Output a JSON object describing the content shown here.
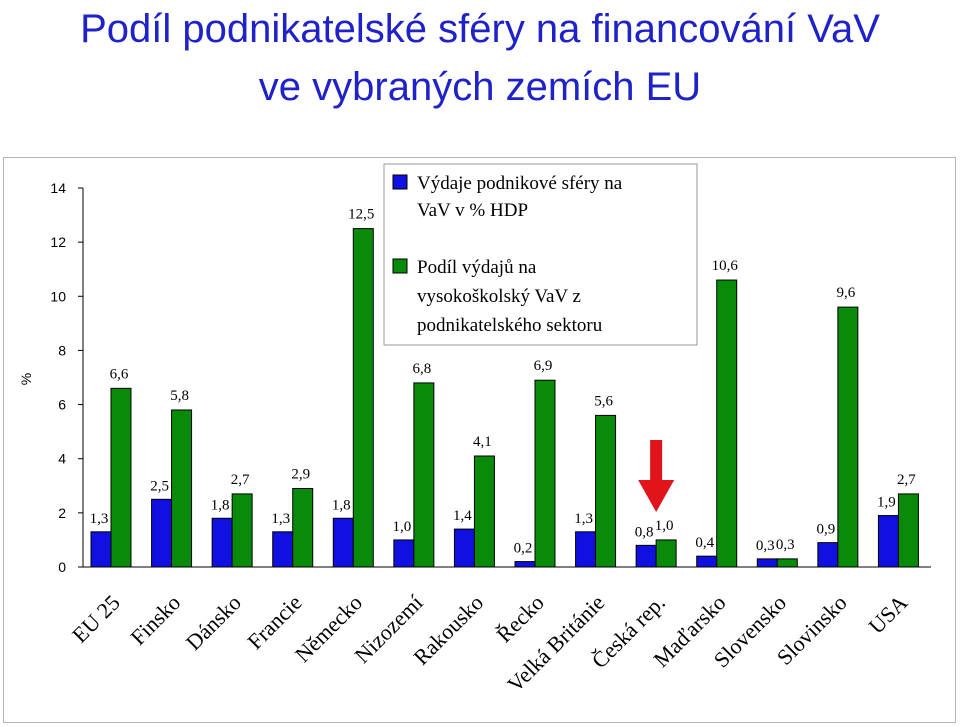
{
  "title": {
    "line1": "Podíl podnikatelské sféry na financování VaV",
    "line2": "ve vybraných zemích EU"
  },
  "colors": {
    "title": "#1e22c8",
    "series1": "#1010e0",
    "series2": "#0a8a0a",
    "arrow": "#e0141a"
  },
  "chart_data": {
    "type": "bar",
    "ylabel": "%",
    "ylim": [
      0,
      14
    ],
    "yticks": [
      0,
      2,
      4,
      6,
      8,
      10,
      12,
      14
    ],
    "grid": false,
    "legend_position": "top-center",
    "categories": [
      "EU 25",
      "Finsko",
      "Dánsko",
      "Francie",
      "Německo",
      "Nizozemí",
      "Rakousko",
      "Řecko",
      "Velká Británie",
      "Česká rep.",
      "Maďarsko",
      "Slovensko",
      "Slovinsko",
      "USA"
    ],
    "series": [
      {
        "name": "Výdaje podnikové sféry na VaV v % HDP",
        "legend_lines": [
          "Výdaje podnikové sféry na",
          "VaV v % HDP"
        ],
        "color": "#1010e0",
        "values": [
          1.3,
          2.5,
          1.8,
          1.3,
          1.8,
          1.0,
          1.4,
          0.2,
          1.3,
          0.8,
          0.4,
          0.3,
          0.9,
          1.9
        ],
        "labels": [
          "1,3",
          "2,5",
          "1,8",
          "1,3",
          "1,8",
          "1,0",
          "1,4",
          "0,2",
          "1,3",
          "0,8",
          "0,4",
          "0,3",
          "0,9",
          "1,9"
        ]
      },
      {
        "name": "Podíl výdajů na vysokoškolský VaV z podnikatelského sektoru",
        "legend_lines": [
          "Podíl výdajů na",
          "vysokoškolský VaV z",
          "podnikatelského sektoru"
        ],
        "color": "#0a8a0a",
        "values": [
          6.6,
          5.8,
          2.7,
          2.9,
          12.5,
          6.8,
          4.1,
          6.9,
          5.6,
          1.0,
          10.6,
          0.3,
          9.6,
          2.7
        ],
        "labels": [
          "6,6",
          "5,8",
          "2,7",
          "2,9",
          "12,5",
          "6,8",
          "4,1",
          "6,9",
          "5,6",
          "1,0",
          "10,6",
          "0,3",
          "9,6",
          "2,7"
        ]
      }
    ],
    "highlight_arrow_category": "Česká rep."
  }
}
